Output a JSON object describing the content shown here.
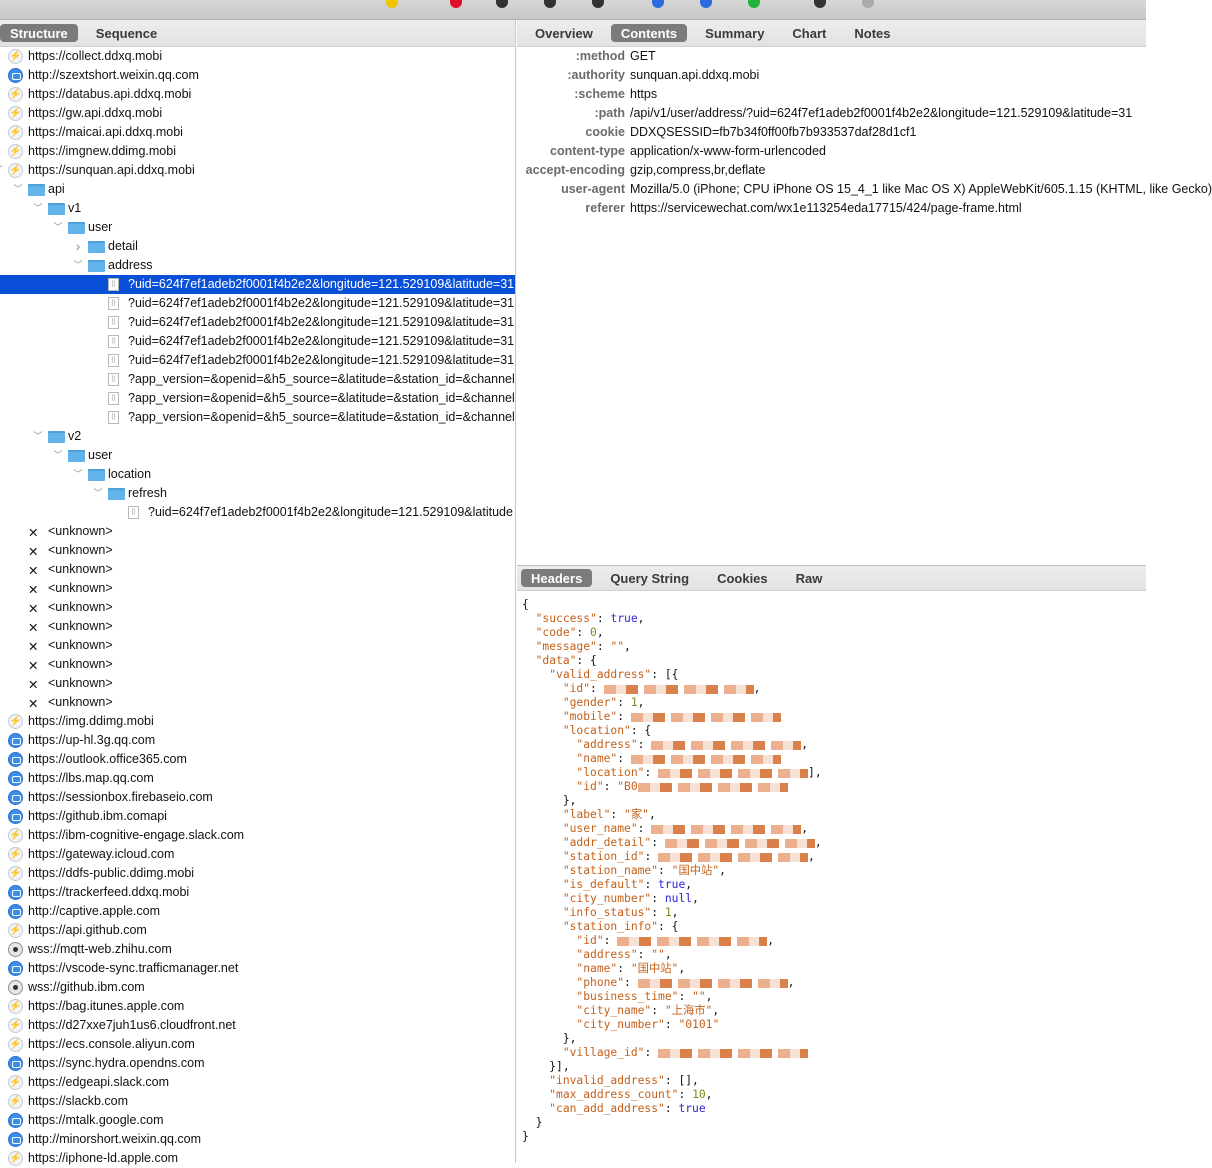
{
  "toolbar": {
    "icons": [
      "lightbulb-icon",
      "record-icon",
      "throttle-icon",
      "turtle-icon",
      "breakpoint-icon",
      "compose-icon",
      "repeat-icon",
      "validate-icon",
      "tools-icon",
      "settings-icon"
    ]
  },
  "left": {
    "tabs": [
      {
        "label": "Structure",
        "active": true
      },
      {
        "label": "Sequence",
        "active": false
      }
    ],
    "tree": [
      {
        "label": "https://collect.ddxq.mobi",
        "icon": "bolt",
        "level": 0
      },
      {
        "label": "http://szextshort.weixin.qq.com",
        "icon": "globe",
        "level": 0
      },
      {
        "label": "https://databus.api.ddxq.mobi",
        "icon": "bolt",
        "level": 0
      },
      {
        "label": "https://gw.api.ddxq.mobi",
        "icon": "bolt",
        "level": 0
      },
      {
        "label": "https://maicai.api.ddxq.mobi",
        "icon": "bolt",
        "level": 0
      },
      {
        "label": "https://imgnew.ddimg.mobi",
        "icon": "bolt",
        "level": 0
      },
      {
        "label": "https://sunquan.api.ddxq.mobi",
        "icon": "bolt",
        "level": 0,
        "expander": "expanded"
      },
      {
        "label": "api",
        "icon": "folder",
        "level": 1,
        "expander": "expanded"
      },
      {
        "label": "v1",
        "icon": "folder",
        "level": 2,
        "expander": "expanded"
      },
      {
        "label": "user",
        "icon": "folder",
        "level": 3,
        "expander": "expanded"
      },
      {
        "label": "detail",
        "icon": "folder",
        "level": 4,
        "expander": "collapsed"
      },
      {
        "label": "address",
        "icon": "folder",
        "level": 4,
        "expander": "expanded"
      },
      {
        "label": "?uid=624f7ef1adeb2f0001f4b2e2&longitude=121.529109&latitude=31",
        "icon": "file",
        "level": 5,
        "selected": true
      },
      {
        "label": "?uid=624f7ef1adeb2f0001f4b2e2&longitude=121.529109&latitude=31",
        "icon": "file",
        "level": 5
      },
      {
        "label": "?uid=624f7ef1adeb2f0001f4b2e2&longitude=121.529109&latitude=31",
        "icon": "file",
        "level": 5
      },
      {
        "label": "?uid=624f7ef1adeb2f0001f4b2e2&longitude=121.529109&latitude=31",
        "icon": "file",
        "level": 5
      },
      {
        "label": "?uid=624f7ef1adeb2f0001f4b2e2&longitude=121.529109&latitude=31",
        "icon": "file",
        "level": 5
      },
      {
        "label": "?app_version=&openid=&h5_source=&latitude=&station_id=&channel",
        "icon": "file",
        "level": 5
      },
      {
        "label": "?app_version=&openid=&h5_source=&latitude=&station_id=&channel",
        "icon": "file",
        "level": 5
      },
      {
        "label": "?app_version=&openid=&h5_source=&latitude=&station_id=&channel",
        "icon": "file",
        "level": 5
      },
      {
        "label": "v2",
        "icon": "folder",
        "level": 2,
        "expander": "expanded"
      },
      {
        "label": "user",
        "icon": "folder",
        "level": 3,
        "expander": "expanded"
      },
      {
        "label": "location",
        "icon": "folder",
        "level": 4,
        "expander": "expanded"
      },
      {
        "label": "refresh",
        "icon": "folder",
        "level": 5,
        "expander": "expanded"
      },
      {
        "label": "?uid=624f7ef1adeb2f0001f4b2e2&longitude=121.529109&latitude",
        "icon": "file",
        "level": 6
      },
      {
        "label": "<unknown>",
        "icon": "error",
        "level": 1
      },
      {
        "label": "<unknown>",
        "icon": "error",
        "level": 1
      },
      {
        "label": "<unknown>",
        "icon": "error",
        "level": 1
      },
      {
        "label": "<unknown>",
        "icon": "error",
        "level": 1
      },
      {
        "label": "<unknown>",
        "icon": "error",
        "level": 1
      },
      {
        "label": "<unknown>",
        "icon": "error",
        "level": 1
      },
      {
        "label": "<unknown>",
        "icon": "error",
        "level": 1
      },
      {
        "label": "<unknown>",
        "icon": "error",
        "level": 1
      },
      {
        "label": "<unknown>",
        "icon": "error",
        "level": 1
      },
      {
        "label": "<unknown>",
        "icon": "error",
        "level": 1
      },
      {
        "label": "https://img.ddimg.mobi",
        "icon": "bolt",
        "level": 0
      },
      {
        "label": "https://up-hl.3g.qq.com",
        "icon": "globe",
        "level": 0
      },
      {
        "label": "https://outlook.office365.com",
        "icon": "globe",
        "level": 0
      },
      {
        "label": "https://lbs.map.qq.com",
        "icon": "globe",
        "level": 0
      },
      {
        "label": "https://sessionbox.firebaseio.com",
        "icon": "globe",
        "level": 0
      },
      {
        "label": "https://github.ibm.comapi",
        "icon": "globe",
        "level": 0
      },
      {
        "label": "https://ibm-cognitive-engage.slack.com",
        "icon": "bolt",
        "level": 0
      },
      {
        "label": "https://gateway.icloud.com",
        "icon": "bolt",
        "level": 0
      },
      {
        "label": "https://ddfs-public.ddimg.mobi",
        "icon": "bolt",
        "level": 0
      },
      {
        "label": "https://trackerfeed.ddxq.mobi",
        "icon": "globe",
        "level": 0
      },
      {
        "label": "http://captive.apple.com",
        "icon": "globe",
        "level": 0
      },
      {
        "label": "https://api.github.com",
        "icon": "bolt",
        "level": 0
      },
      {
        "label": "wss://mqtt-web.zhihu.com",
        "icon": "ws",
        "level": 0
      },
      {
        "label": "https://vscode-sync.trafficmanager.net",
        "icon": "globe",
        "level": 0
      },
      {
        "label": "wss://github.ibm.com",
        "icon": "ws",
        "level": 0
      },
      {
        "label": "https://bag.itunes.apple.com",
        "icon": "bolt",
        "level": 0
      },
      {
        "label": "https://d27xxe7juh1us6.cloudfront.net",
        "icon": "bolt",
        "level": 0
      },
      {
        "label": "https://ecs.console.aliyun.com",
        "icon": "bolt",
        "level": 0
      },
      {
        "label": "https://sync.hydra.opendns.com",
        "icon": "globe",
        "level": 0
      },
      {
        "label": "https://edgeapi.slack.com",
        "icon": "bolt",
        "level": 0
      },
      {
        "label": "https://slackb.com",
        "icon": "bolt",
        "level": 0
      },
      {
        "label": "https://mtalk.google.com",
        "icon": "globe",
        "level": 0
      },
      {
        "label": "http://minorshort.weixin.qq.com",
        "icon": "globe",
        "level": 0
      },
      {
        "label": "https://iphone-ld.apple.com",
        "icon": "bolt",
        "level": 0
      }
    ]
  },
  "right": {
    "tabs": [
      {
        "label": "Overview",
        "active": false
      },
      {
        "label": "Contents",
        "active": true
      },
      {
        "label": "Summary",
        "active": false
      },
      {
        "label": "Chart",
        "active": false
      },
      {
        "label": "Notes",
        "active": false
      }
    ],
    "headers": [
      {
        "key": ":method",
        "value": "GET"
      },
      {
        "key": ":authority",
        "value": "sunquan.api.ddxq.mobi"
      },
      {
        "key": ":scheme",
        "value": "https"
      },
      {
        "key": ":path",
        "value": "/api/v1/user/address/?uid=624f7ef1adeb2f0001f4b2e2&longitude=121.529109&latitude=31"
      },
      {
        "key": "cookie",
        "value": "DDXQSESSID=fb7b34f0ff00fb7b933537daf28d1cf1"
      },
      {
        "key": "content-type",
        "value": "application/x-www-form-urlencoded"
      },
      {
        "key": "accept-encoding",
        "value": "gzip,compress,br,deflate"
      },
      {
        "key": "user-agent",
        "value": "Mozilla/5.0 (iPhone; CPU iPhone OS 15_4_1 like Mac OS X) AppleWebKit/605.1.15 (KHTML, like Gecko)"
      },
      {
        "key": "referer",
        "value": "https://servicewechat.com/wx1e113254eda17715/424/page-frame.html"
      }
    ],
    "bottom_tabs": [
      {
        "label": "Headers",
        "active": true
      },
      {
        "label": "Query String",
        "active": false
      },
      {
        "label": "Cookies",
        "active": false
      },
      {
        "label": "Raw",
        "active": false
      }
    ],
    "json_lines": [
      {
        "indent": 0,
        "tokens": [
          [
            "p",
            "{"
          ]
        ]
      },
      {
        "indent": 1,
        "tokens": [
          [
            "key",
            "\"success\""
          ],
          [
            "p",
            ": "
          ],
          [
            "bool",
            "true"
          ],
          [
            "p",
            ","
          ]
        ]
      },
      {
        "indent": 1,
        "tokens": [
          [
            "key",
            "\"code\""
          ],
          [
            "p",
            ": "
          ],
          [
            "num",
            "0"
          ],
          [
            "p",
            ","
          ]
        ]
      },
      {
        "indent": 1,
        "tokens": [
          [
            "key",
            "\"message\""
          ],
          [
            "p",
            ": "
          ],
          [
            "str",
            "\"\""
          ],
          [
            "p",
            ","
          ]
        ]
      },
      {
        "indent": 1,
        "tokens": [
          [
            "key",
            "\"data\""
          ],
          [
            "p",
            ": {"
          ]
        ]
      },
      {
        "indent": 2,
        "tokens": [
          [
            "key",
            "\"valid_address\""
          ],
          [
            "p",
            ": [{"
          ]
        ]
      },
      {
        "indent": 3,
        "tokens": [
          [
            "key",
            "\"id\""
          ],
          [
            "p",
            ": "
          ],
          [
            "red",
            ""
          ],
          [
            "p",
            ","
          ]
        ]
      },
      {
        "indent": 3,
        "tokens": [
          [
            "key",
            "\"gender\""
          ],
          [
            "p",
            ": "
          ],
          [
            "num",
            "1"
          ],
          [
            "p",
            ","
          ]
        ]
      },
      {
        "indent": 3,
        "tokens": [
          [
            "key",
            "\"mobile\""
          ],
          [
            "p",
            ": "
          ],
          [
            "red",
            ""
          ]
        ]
      },
      {
        "indent": 3,
        "tokens": [
          [
            "key",
            "\"location\""
          ],
          [
            "p",
            ": {"
          ]
        ]
      },
      {
        "indent": 4,
        "tokens": [
          [
            "key",
            "\"address\""
          ],
          [
            "p",
            ": "
          ],
          [
            "red",
            ""
          ],
          [
            "p",
            ","
          ]
        ]
      },
      {
        "indent": 4,
        "tokens": [
          [
            "key",
            "\"name\""
          ],
          [
            "p",
            ": "
          ],
          [
            "red",
            ""
          ]
        ]
      },
      {
        "indent": 4,
        "tokens": [
          [
            "key",
            "\"location\""
          ],
          [
            "p",
            ": "
          ],
          [
            "red",
            ""
          ],
          [
            "p",
            "],"
          ]
        ]
      },
      {
        "indent": 4,
        "tokens": [
          [
            "key",
            "\"id\""
          ],
          [
            "p",
            ": "
          ],
          [
            "str",
            "\"B0"
          ],
          [
            "red",
            ""
          ]
        ]
      },
      {
        "indent": 3,
        "tokens": [
          [
            "p",
            "},"
          ]
        ]
      },
      {
        "indent": 3,
        "tokens": [
          [
            "key",
            "\"label\""
          ],
          [
            "p",
            ": "
          ],
          [
            "str",
            "\"家\""
          ],
          [
            "p",
            ","
          ]
        ]
      },
      {
        "indent": 3,
        "tokens": [
          [
            "key",
            "\"user_name\""
          ],
          [
            "p",
            ": "
          ],
          [
            "red",
            ""
          ],
          [
            "p",
            ","
          ]
        ]
      },
      {
        "indent": 3,
        "tokens": [
          [
            "key",
            "\"addr_detail\""
          ],
          [
            "p",
            ": "
          ],
          [
            "red",
            ""
          ],
          [
            "p",
            ","
          ]
        ]
      },
      {
        "indent": 3,
        "tokens": [
          [
            "key",
            "\"station_id\""
          ],
          [
            "p",
            ": "
          ],
          [
            "red",
            ""
          ],
          [
            "p",
            ","
          ]
        ]
      },
      {
        "indent": 3,
        "tokens": [
          [
            "key",
            "\"station_name\""
          ],
          [
            "p",
            ": "
          ],
          [
            "str",
            "\"国中站\""
          ],
          [
            "p",
            ","
          ]
        ]
      },
      {
        "indent": 3,
        "tokens": [
          [
            "key",
            "\"is_default\""
          ],
          [
            "p",
            ": "
          ],
          [
            "bool",
            "true"
          ],
          [
            "p",
            ","
          ]
        ]
      },
      {
        "indent": 3,
        "tokens": [
          [
            "key",
            "\"city_number\""
          ],
          [
            "p",
            ": "
          ],
          [
            "bool",
            "null"
          ],
          [
            "p",
            ","
          ]
        ]
      },
      {
        "indent": 3,
        "tokens": [
          [
            "key",
            "\"info_status\""
          ],
          [
            "p",
            ": "
          ],
          [
            "num",
            "1"
          ],
          [
            "p",
            ","
          ]
        ]
      },
      {
        "indent": 3,
        "tokens": [
          [
            "key",
            "\"station_info\""
          ],
          [
            "p",
            ": {"
          ]
        ]
      },
      {
        "indent": 4,
        "tokens": [
          [
            "key",
            "\"id\""
          ],
          [
            "p",
            ": "
          ],
          [
            "red",
            ""
          ],
          [
            "p",
            ","
          ]
        ]
      },
      {
        "indent": 4,
        "tokens": [
          [
            "key",
            "\"address\""
          ],
          [
            "p",
            ": "
          ],
          [
            "str",
            "\"\""
          ],
          [
            "p",
            ","
          ]
        ]
      },
      {
        "indent": 4,
        "tokens": [
          [
            "key",
            "\"name\""
          ],
          [
            "p",
            ": "
          ],
          [
            "str",
            "\"国中站\""
          ],
          [
            "p",
            ","
          ]
        ]
      },
      {
        "indent": 4,
        "tokens": [
          [
            "key",
            "\"phone\""
          ],
          [
            "p",
            ": "
          ],
          [
            "red",
            ""
          ],
          [
            "p",
            ","
          ]
        ]
      },
      {
        "indent": 4,
        "tokens": [
          [
            "key",
            "\"business_time\""
          ],
          [
            "p",
            ": "
          ],
          [
            "str",
            "\"\""
          ],
          [
            "p",
            ","
          ]
        ]
      },
      {
        "indent": 4,
        "tokens": [
          [
            "key",
            "\"city_name\""
          ],
          [
            "p",
            ": "
          ],
          [
            "str",
            "\"上海市\""
          ],
          [
            "p",
            ","
          ]
        ]
      },
      {
        "indent": 4,
        "tokens": [
          [
            "key",
            "\"city_number\""
          ],
          [
            "p",
            ": "
          ],
          [
            "str",
            "\"0101\""
          ]
        ]
      },
      {
        "indent": 3,
        "tokens": [
          [
            "p",
            "},"
          ]
        ]
      },
      {
        "indent": 3,
        "tokens": [
          [
            "key",
            "\"village_id\""
          ],
          [
            "p",
            ": "
          ],
          [
            "red",
            ""
          ]
        ]
      },
      {
        "indent": 2,
        "tokens": [
          [
            "p",
            "}],"
          ]
        ]
      },
      {
        "indent": 2,
        "tokens": [
          [
            "key",
            "\"invalid_address\""
          ],
          [
            "p",
            ": [],"
          ]
        ]
      },
      {
        "indent": 2,
        "tokens": [
          [
            "key",
            "\"max_address_count\""
          ],
          [
            "p",
            ": "
          ],
          [
            "num",
            "10"
          ],
          [
            "p",
            ","
          ]
        ]
      },
      {
        "indent": 2,
        "tokens": [
          [
            "key",
            "\"can_add_address\""
          ],
          [
            "p",
            ": "
          ],
          [
            "bool",
            "true"
          ]
        ]
      },
      {
        "indent": 1,
        "tokens": [
          [
            "p",
            "}"
          ]
        ]
      },
      {
        "indent": 0,
        "tokens": [
          [
            "p",
            "}"
          ]
        ]
      }
    ]
  },
  "colors": {
    "selection": "#0a4fd8",
    "json_key": "#c4601a",
    "json_bool": "#2a24d8",
    "json_num": "#7e8a18"
  }
}
